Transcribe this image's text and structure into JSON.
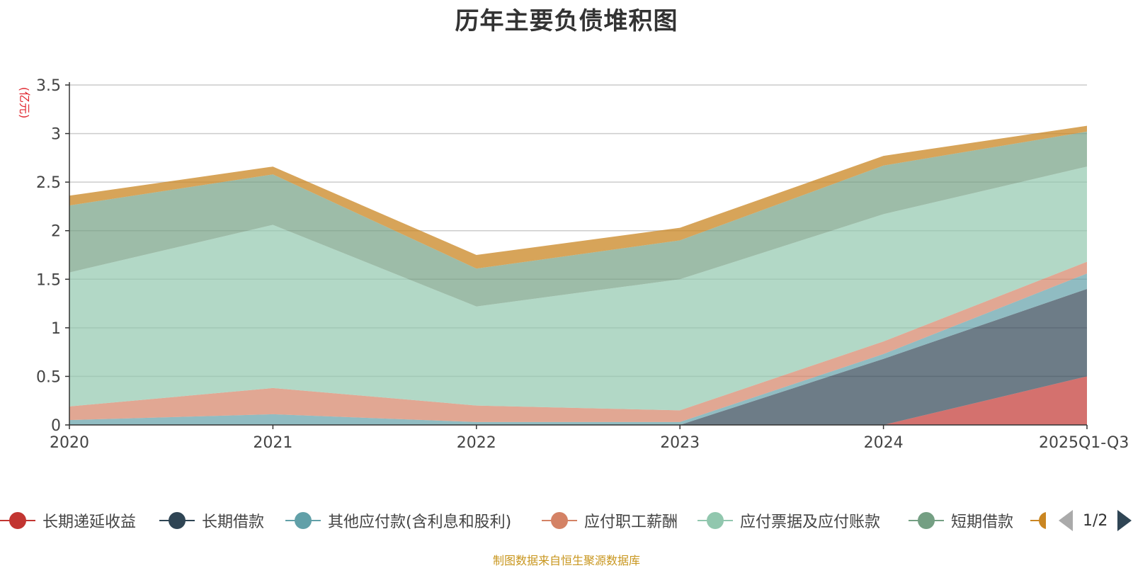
{
  "title": "历年主要负债堆积图",
  "unit_label": "(亿元)",
  "source_note": "制图数据来自恒生聚源数据库",
  "legend_page": "1/2",
  "chart_data": {
    "type": "area",
    "stacked": true,
    "categories": [
      "2020",
      "2021",
      "2022",
      "2023",
      "2024",
      "2025Q1-Q3"
    ],
    "ylim": [
      0,
      3.5
    ],
    "yticks": [
      "0",
      "0.5",
      "1",
      "1.5",
      "2",
      "2.5",
      "3",
      "3.5"
    ],
    "grid": true,
    "legend_position": "bottom",
    "series": [
      {
        "name": "长期递延收益",
        "color": "#c23531",
        "values": [
          0,
          0,
          0,
          0,
          0,
          0.5
        ]
      },
      {
        "name": "长期借款",
        "color": "#2f4554",
        "values": [
          0,
          0,
          0,
          0,
          0.68,
          0.9
        ]
      },
      {
        "name": "其他应付款(含利息和股利)",
        "color": "#61a0a8",
        "values": [
          0.05,
          0.11,
          0.03,
          0.03,
          0.05,
          0.16
        ]
      },
      {
        "name": "应付职工薪酬",
        "color": "#d48265",
        "values": [
          0.14,
          0.27,
          0.17,
          0.12,
          0.13,
          0.12
        ]
      },
      {
        "name": "应付票据及应付账款",
        "color": "#91c7ae",
        "values": [
          1.38,
          1.68,
          1.02,
          1.35,
          1.31,
          0.98
        ]
      },
      {
        "name": "短期借款",
        "color": "#749f83",
        "values": [
          0.69,
          0.52,
          0.39,
          0.4,
          0.5,
          0.36
        ]
      },
      {
        "name": "",
        "color": "#ca8622",
        "values": [
          0.1,
          0.08,
          0.14,
          0.13,
          0.1,
          0.06
        ]
      }
    ]
  }
}
